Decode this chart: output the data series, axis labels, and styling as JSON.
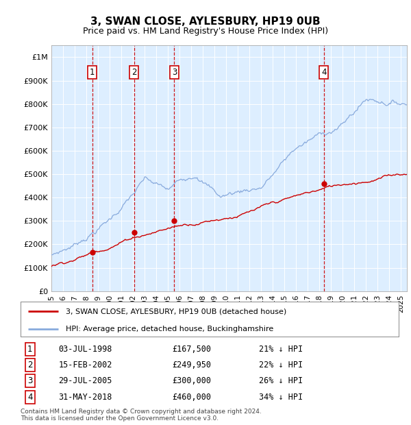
{
  "title": "3, SWAN CLOSE, AYLESBURY, HP19 0UB",
  "subtitle": "Price paid vs. HM Land Registry's House Price Index (HPI)",
  "transactions": [
    {
      "num": 1,
      "date": "1998-07-03",
      "price": 167500,
      "hpi_pct": "21% ↓ HPI"
    },
    {
      "num": 2,
      "date": "2002-02-15",
      "price": 249950,
      "hpi_pct": "22% ↓ HPI"
    },
    {
      "num": 3,
      "date": "2005-07-29",
      "price": 300000,
      "hpi_pct": "26% ↓ HPI"
    },
    {
      "num": 4,
      "date": "2018-05-31",
      "price": 460000,
      "hpi_pct": "34% ↓ HPI"
    }
  ],
  "legend_house": "3, SWAN CLOSE, AYLESBURY, HP19 0UB (detached house)",
  "legend_hpi": "HPI: Average price, detached house, Buckinghamshire",
  "footer1": "Contains HM Land Registry data © Crown copyright and database right 2024.",
  "footer2": "This data is licensed under the Open Government Licence v3.0.",
  "house_color": "#cc0000",
  "hpi_color": "#88aadd",
  "vline_color": "#cc0000",
  "box_color": "#cc0000",
  "bg_color": "#ddeeff",
  "ylim_max": 1050000,
  "ylabel_ticks": [
    0,
    100000,
    200000,
    300000,
    400000,
    500000,
    600000,
    700000,
    800000,
    900000,
    1000000
  ],
  "xtick_years": [
    1995,
    1996,
    1997,
    1998,
    1999,
    2000,
    2001,
    2002,
    2003,
    2004,
    2005,
    2006,
    2007,
    2008,
    2009,
    2010,
    2011,
    2012,
    2013,
    2014,
    2015,
    2016,
    2017,
    2018,
    2019,
    2020,
    2021,
    2022,
    2023,
    2024,
    2025
  ],
  "date_labels": [
    "03-JUL-1998",
    "15-FEB-2002",
    "29-JUL-2005",
    "31-MAY-2018"
  ],
  "price_labels": [
    "£167,500",
    "£249,950",
    "£300,000",
    "£460,000"
  ]
}
